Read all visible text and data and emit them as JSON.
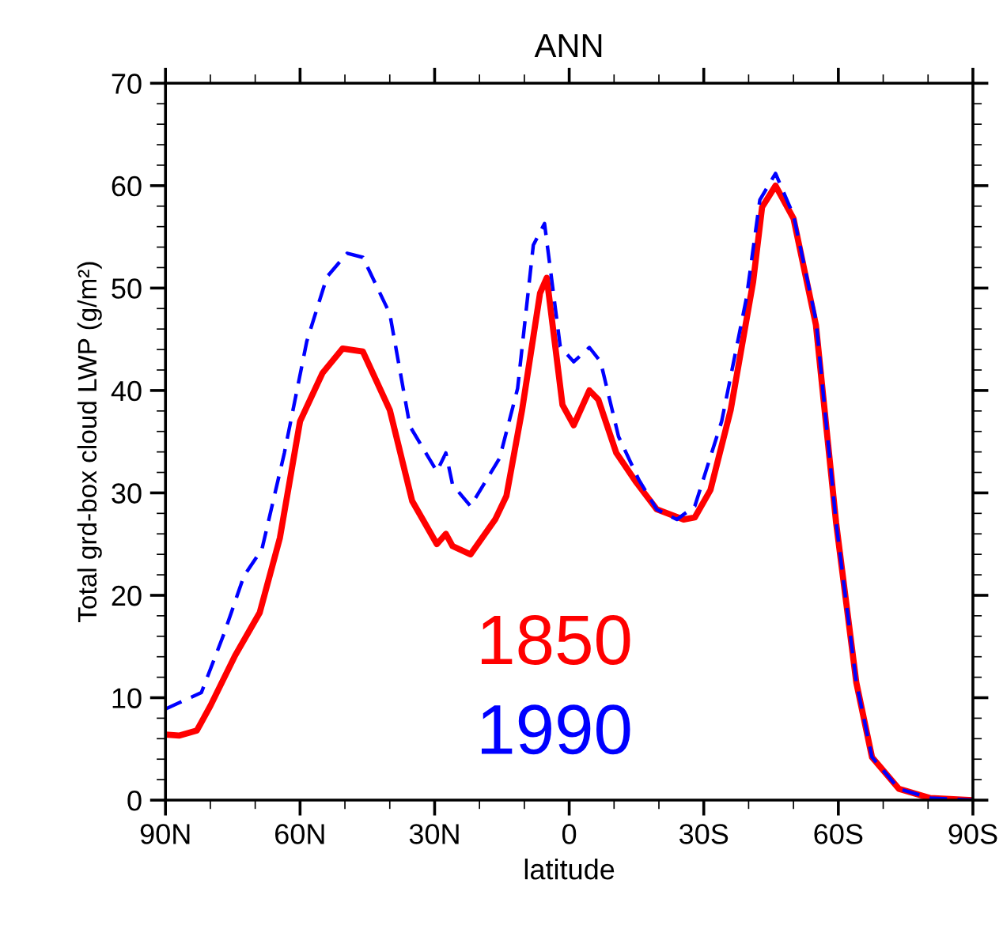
{
  "chart_data": {
    "type": "line",
    "title": "ANN",
    "xlabel": "latitude",
    "ylabel": "Total grd-box cloud LWP (g/m²)",
    "xlim": [
      90,
      -90
    ],
    "xticks": [
      {
        "value": 90,
        "label": "90N"
      },
      {
        "value": 60,
        "label": "60N"
      },
      {
        "value": 30,
        "label": "30N"
      },
      0,
      {
        "value": -30,
        "label": "30S"
      },
      {
        "value": -60,
        "label": "60S"
      },
      {
        "value": -90,
        "label": "90S"
      }
    ],
    "ylim": [
      0,
      70
    ],
    "yticks": [
      0,
      10,
      20,
      30,
      40,
      50,
      60,
      70
    ],
    "grid": false,
    "legend": false,
    "marker": "none",
    "series": [
      {
        "name": "1850",
        "color": "#ff0000",
        "line_style": "solid",
        "x": [
          90,
          87,
          83,
          80,
          74.5,
          69,
          64.5,
          60,
          55,
          50.5,
          46,
          40,
          35,
          29.5,
          27.5,
          26,
          22,
          16.5,
          14,
          10.5,
          6.5,
          5,
          1.5,
          -1,
          -4.5,
          -6.5,
          -10.5,
          -15,
          -19.5,
          -25.5,
          -28,
          -31.5,
          -36,
          -41,
          -43,
          -46,
          -50,
          -55,
          -59.5,
          -64,
          -67.5,
          -73.5,
          -80.5,
          -90
        ],
        "values": [
          6.4,
          6.3,
          6.8,
          9.2,
          14.1,
          18.3,
          25.6,
          37.0,
          41.7,
          44.1,
          43.8,
          38.1,
          29.2,
          25.0,
          26.0,
          24.8,
          24.0,
          27.4,
          29.7,
          38.1,
          49.5,
          51.0,
          38.6,
          36.6,
          40.0,
          39.1,
          33.9,
          31.0,
          28.4,
          27.4,
          27.6,
          30.3,
          38.1,
          50.6,
          57.9,
          60.0,
          56.8,
          46.4,
          27.1,
          11.5,
          4.2,
          1.1,
          0.2,
          0
        ]
      },
      {
        "name": "1990",
        "color": "#0000ff",
        "line_style": "dashed",
        "x": [
          90,
          82,
          77,
          72.5,
          68.5,
          63.5,
          58.5,
          54,
          49.5,
          46,
          40,
          35.5,
          29.5,
          27.5,
          26,
          22,
          15.5,
          11.5,
          8,
          5.5,
          2,
          -1,
          -4.5,
          -7,
          -11,
          -15.5,
          -19.5,
          -24,
          -28,
          -34,
          -39.5,
          -42.5,
          -46,
          -50,
          -55,
          -59.5,
          -64,
          -67.5,
          -73.5,
          -80.5,
          -90
        ],
        "values": [
          8.9,
          10.5,
          16.2,
          21.9,
          24.5,
          33.9,
          44.8,
          51.1,
          53.4,
          53.0,
          47.5,
          36.5,
          32.1,
          33.9,
          30.8,
          28.7,
          33.4,
          40.2,
          54.2,
          56.3,
          44.3,
          42.8,
          44.2,
          42.8,
          35.5,
          31.3,
          28.4,
          27.4,
          28.7,
          37.0,
          49.0,
          58.6,
          61.2,
          57.1,
          46.9,
          27.1,
          11.5,
          4.2,
          1.1,
          0.2,
          0
        ]
      }
    ]
  }
}
